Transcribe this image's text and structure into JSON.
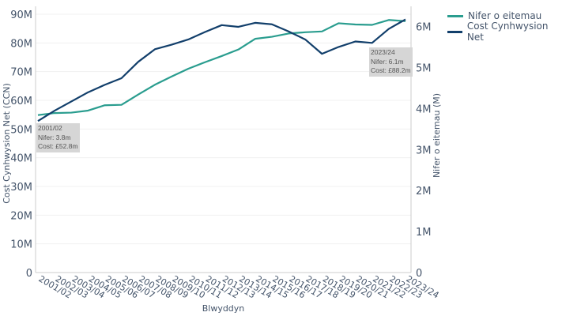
{
  "chart_data": {
    "type": "line",
    "xlabel": "Blwyddyn",
    "ylabel_left": "Cost Cynhwysion Net (CCN)",
    "ylabel_right": "Nifer o eitemau (M)",
    "categories": [
      "2001/02",
      "2002/03",
      "2003/04",
      "2004/05",
      "2005/06",
      "2006/07",
      "2007/08",
      "2008/09",
      "2009/10",
      "2010/11",
      "2011/12",
      "2012/13",
      "2013/14",
      "2014/15",
      "2015/16",
      "2016/17",
      "2017/18",
      "2018/19",
      "2019/20",
      "2020/21",
      "2021/22",
      "2022/23",
      "2023/24"
    ],
    "y_left": {
      "ticks": [
        "0",
        "10M",
        "20M",
        "30M",
        "40M",
        "50M",
        "60M",
        "70M",
        "80M",
        "90M"
      ],
      "range_millions": [
        0,
        90
      ]
    },
    "y_right": {
      "ticks": [
        "0",
        "1M",
        "2M",
        "3M",
        "4M",
        "5M",
        "6M"
      ],
      "range_millions": [
        0,
        6.3
      ]
    },
    "grid": true,
    "legend_position": "top-right",
    "series": [
      {
        "name": "Nifer o eitemau",
        "axis": "right",
        "color": "#2a9d8f",
        "values_millions": [
          3.84,
          3.89,
          3.9,
          3.95,
          4.08,
          4.09,
          4.34,
          4.58,
          4.78,
          4.97,
          5.13,
          5.28,
          5.44,
          5.7,
          5.75,
          5.83,
          5.86,
          5.88,
          6.08,
          6.05,
          6.04,
          6.16,
          6.13
        ]
      },
      {
        "name": "Cost Cynhwysion Net",
        "axis": "left",
        "color": "#123f6b",
        "values_millions": [
          52.8,
          56.4,
          59.6,
          62.8,
          65.4,
          67.7,
          73.4,
          77.8,
          79.4,
          81.2,
          83.8,
          86.2,
          85.6,
          87.0,
          86.5,
          84.0,
          81.2,
          76.2,
          78.6,
          80.5,
          80.0,
          84.9,
          88.2
        ]
      }
    ],
    "annotations": [
      {
        "lines": [
          "2001/02",
          "Nifer: 3.8m",
          "Cost: £52.8m"
        ]
      },
      {
        "lines": [
          "2023/24",
          "Nifer: 6.1m",
          "Cost: £88.2m"
        ]
      }
    ]
  }
}
